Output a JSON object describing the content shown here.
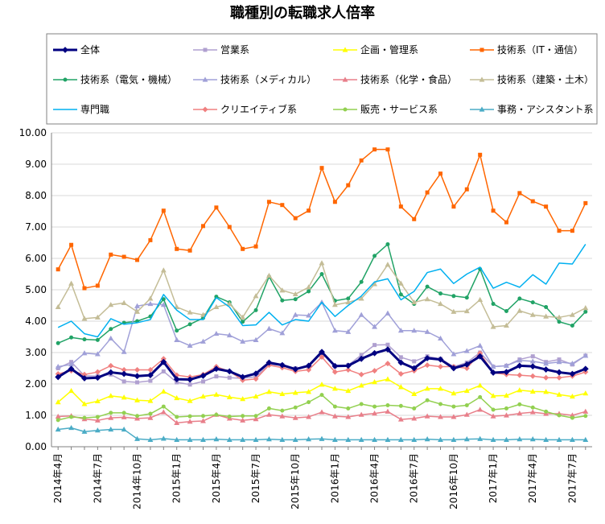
{
  "chart_data": {
    "type": "line",
    "title": "職種別の転職求人倍率",
    "xlabel": "",
    "ylabel": "",
    "ylim": [
      0,
      10
    ],
    "yticks": [
      "0.00",
      "1.00",
      "2.00",
      "3.00",
      "4.00",
      "5.00",
      "6.00",
      "7.00",
      "8.00",
      "9.00",
      "10.00"
    ],
    "x": [
      "2014-04",
      "2014-05",
      "2014-06",
      "2014-07",
      "2014-08",
      "2014-09",
      "2014-10",
      "2014-11",
      "2014-12",
      "2015-01",
      "2015-02",
      "2015-03",
      "2015-04",
      "2015-05",
      "2015-06",
      "2015-07",
      "2015-08",
      "2015-09",
      "2015-10",
      "2015-11",
      "2015-12",
      "2016-01",
      "2016-02",
      "2016-03",
      "2016-04",
      "2016-05",
      "2016-06",
      "2016-07",
      "2016-08",
      "2016-09",
      "2016-10",
      "2016-11",
      "2016-12",
      "2017-01",
      "2017-02",
      "2017-03",
      "2017-04",
      "2017-05",
      "2017-06",
      "2017-07",
      "2017-08"
    ],
    "xtick_labels": [
      "2014年4月",
      "2014年7月",
      "2014年10月",
      "2015年1月",
      "2015年4月",
      "2015年7月",
      "2015年10月",
      "2016年1月",
      "2016年4月",
      "2016年7月",
      "2016年10月",
      "2017年1月",
      "2017年4月",
      "2017年7月"
    ],
    "grid": true,
    "legend_position": "top",
    "series": [
      {
        "name": "全体",
        "color": "#000080",
        "marker": "diamond",
        "width": 3,
        "values": [
          2.22,
          2.48,
          2.18,
          2.2,
          2.37,
          2.32,
          2.25,
          2.28,
          2.7,
          2.15,
          2.14,
          2.26,
          2.48,
          2.4,
          2.22,
          2.33,
          2.68,
          2.6,
          2.47,
          2.58,
          3.02,
          2.57,
          2.58,
          2.8,
          2.98,
          3.1,
          2.68,
          2.5,
          2.82,
          2.78,
          2.5,
          2.62,
          2.88,
          2.36,
          2.38,
          2.58,
          2.56,
          2.46,
          2.37,
          2.32,
          2.48
        ]
      },
      {
        "name": "営業系",
        "color": "#b0a0d0",
        "marker": "square",
        "width": 1.5,
        "values": [
          2.5,
          2.7,
          2.26,
          2.25,
          2.3,
          2.08,
          2.05,
          2.1,
          2.4,
          2.05,
          1.98,
          2.08,
          2.24,
          2.2,
          2.18,
          2.23,
          2.62,
          2.6,
          2.5,
          2.55,
          2.98,
          2.56,
          2.6,
          2.92,
          3.24,
          3.25,
          2.85,
          2.72,
          2.88,
          2.8,
          2.55,
          2.68,
          3.0,
          2.55,
          2.58,
          2.78,
          2.88,
          2.7,
          2.78,
          2.62,
          2.9
        ]
      },
      {
        "name": "企画・管理系",
        "color": "#ffff00",
        "marker": "triangle",
        "width": 1.5,
        "values": [
          1.42,
          1.78,
          1.36,
          1.45,
          1.62,
          1.57,
          1.48,
          1.46,
          1.76,
          1.55,
          1.46,
          1.6,
          1.66,
          1.58,
          1.52,
          1.6,
          1.75,
          1.68,
          1.72,
          1.75,
          1.98,
          1.85,
          1.78,
          1.95,
          2.06,
          2.15,
          1.9,
          1.68,
          1.85,
          1.85,
          1.7,
          1.78,
          1.95,
          1.62,
          1.63,
          1.8,
          1.76,
          1.75,
          1.66,
          1.6,
          1.7
        ]
      },
      {
        "name": "技術系（IT・通信）",
        "color": "#ff6600",
        "marker": "square",
        "width": 1.5,
        "values": [
          5.65,
          6.43,
          5.05,
          5.13,
          6.12,
          6.05,
          5.95,
          6.58,
          7.52,
          6.3,
          6.25,
          7.03,
          7.62,
          7.0,
          6.3,
          6.38,
          7.8,
          7.7,
          7.28,
          7.52,
          8.88,
          7.8,
          8.33,
          9.12,
          9.47,
          9.47,
          7.65,
          7.25,
          8.1,
          8.7,
          7.65,
          8.2,
          9.3,
          7.52,
          7.15,
          8.08,
          7.82,
          7.65,
          6.88,
          6.88,
          7.76
        ]
      },
      {
        "name": "技術系（電気・機械）",
        "color": "#21a366",
        "marker": "circle",
        "width": 1.5,
        "values": [
          3.3,
          3.48,
          3.42,
          3.4,
          3.75,
          3.95,
          4.0,
          4.15,
          4.7,
          3.7,
          3.9,
          4.1,
          4.78,
          4.6,
          3.98,
          4.35,
          5.42,
          4.66,
          4.7,
          4.95,
          5.5,
          4.65,
          4.72,
          5.25,
          6.08,
          6.45,
          4.85,
          4.55,
          5.1,
          4.88,
          4.8,
          4.75,
          5.66,
          4.55,
          4.32,
          4.72,
          4.6,
          4.45,
          3.98,
          3.86,
          4.3
        ]
      },
      {
        "name": "技術系（メディカル）",
        "color": "#a0a0d8",
        "marker": "triangle",
        "width": 1.5,
        "values": [
          2.55,
          2.62,
          2.98,
          2.95,
          3.45,
          3.02,
          4.48,
          4.55,
          4.52,
          3.4,
          3.22,
          3.35,
          3.6,
          3.55,
          3.35,
          3.4,
          3.76,
          3.62,
          4.2,
          4.18,
          4.6,
          3.7,
          3.66,
          4.2,
          3.82,
          4.25,
          3.7,
          3.7,
          3.66,
          3.45,
          2.95,
          3.05,
          3.22,
          2.55,
          2.58,
          2.75,
          2.72,
          2.65,
          2.7,
          2.65,
          2.9
        ]
      },
      {
        "name": "技術系（化学・食品）",
        "color": "#e87f8a",
        "marker": "triangle",
        "width": 1.5,
        "values": [
          0.96,
          0.98,
          0.88,
          0.84,
          0.92,
          0.94,
          0.9,
          0.92,
          1.1,
          0.76,
          0.8,
          0.82,
          1.02,
          0.9,
          0.84,
          0.88,
          1.02,
          0.97,
          0.92,
          0.95,
          1.1,
          0.97,
          0.95,
          1.02,
          1.06,
          1.12,
          0.87,
          0.9,
          0.97,
          0.95,
          0.95,
          1.02,
          1.18,
          0.97,
          1.0,
          1.06,
          1.1,
          1.05,
          1.05,
          1.0,
          1.12
        ]
      },
      {
        "name": "技術系（建築・土木）",
        "color": "#c4bd97",
        "marker": "triangle",
        "width": 1.5,
        "values": [
          4.45,
          5.2,
          4.08,
          4.12,
          4.52,
          4.58,
          4.3,
          4.72,
          5.62,
          4.45,
          4.28,
          4.2,
          4.45,
          4.55,
          4.12,
          4.8,
          5.45,
          4.98,
          4.86,
          5.08,
          5.85,
          4.52,
          4.6,
          4.72,
          5.18,
          5.8,
          5.2,
          4.6,
          4.7,
          4.55,
          4.3,
          4.32,
          4.68,
          3.82,
          3.86,
          4.33,
          4.2,
          4.15,
          4.12,
          4.2,
          4.42
        ]
      },
      {
        "name": "専門職",
        "color": "#00b0f0",
        "marker": "line",
        "width": 1.5,
        "values": [
          3.8,
          4.0,
          3.6,
          3.5,
          4.08,
          3.9,
          3.95,
          4.05,
          4.85,
          4.35,
          4.05,
          4.05,
          4.75,
          4.45,
          3.86,
          3.88,
          4.28,
          3.88,
          4.05,
          4.0,
          4.6,
          4.15,
          4.5,
          4.8,
          5.25,
          5.35,
          4.68,
          4.95,
          5.55,
          5.66,
          5.2,
          5.5,
          5.72,
          5.05,
          5.24,
          5.08,
          5.48,
          5.18,
          5.85,
          5.82,
          6.45
        ]
      },
      {
        "name": "クリエイティブ系",
        "color": "#f08080",
        "marker": "diamond",
        "width": 1.5,
        "values": [
          2.32,
          2.42,
          2.3,
          2.38,
          2.58,
          2.45,
          2.45,
          2.45,
          2.8,
          2.28,
          2.22,
          2.3,
          2.55,
          2.4,
          2.12,
          2.16,
          2.6,
          2.52,
          2.4,
          2.45,
          2.86,
          2.38,
          2.45,
          2.3,
          2.42,
          2.65,
          2.32,
          2.42,
          2.6,
          2.55,
          2.55,
          2.5,
          2.98,
          2.36,
          2.3,
          2.28,
          2.25,
          2.2,
          2.2,
          2.25,
          2.38
        ]
      },
      {
        "name": "販売・サービス系",
        "color": "#92d050",
        "marker": "circle",
        "width": 1.5,
        "values": [
          0.85,
          0.95,
          0.92,
          0.95,
          1.08,
          1.08,
          0.98,
          1.05,
          1.28,
          0.95,
          0.97,
          0.98,
          1.02,
          0.96,
          0.98,
          0.98,
          1.22,
          1.15,
          1.25,
          1.42,
          1.65,
          1.28,
          1.22,
          1.36,
          1.28,
          1.32,
          1.3,
          1.22,
          1.48,
          1.36,
          1.28,
          1.32,
          1.58,
          1.18,
          1.22,
          1.35,
          1.25,
          1.12,
          1.0,
          0.92,
          0.98
        ]
      },
      {
        "name": "事務・アシスタント系",
        "color": "#4bacc6",
        "marker": "triangle",
        "width": 1.5,
        "values": [
          0.55,
          0.6,
          0.48,
          0.52,
          0.55,
          0.55,
          0.25,
          0.22,
          0.26,
          0.22,
          0.22,
          0.22,
          0.24,
          0.22,
          0.22,
          0.22,
          0.24,
          0.22,
          0.22,
          0.24,
          0.25,
          0.22,
          0.22,
          0.22,
          0.22,
          0.22,
          0.22,
          0.22,
          0.24,
          0.22,
          0.22,
          0.24,
          0.25,
          0.22,
          0.22,
          0.24,
          0.24,
          0.22,
          0.22,
          0.22,
          0.22
        ]
      }
    ]
  }
}
